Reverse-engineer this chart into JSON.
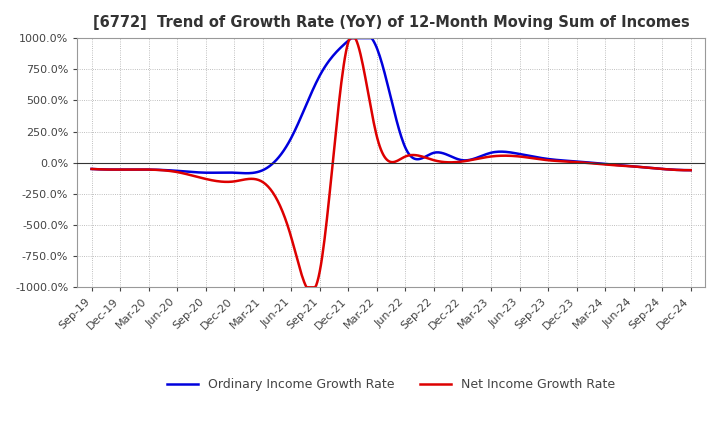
{
  "title": "[6772]  Trend of Growth Rate (YoY) of 12-Month Moving Sum of Incomes",
  "ylim": [
    -1000,
    1000
  ],
  "yticks": [
    1000.0,
    750.0,
    500.0,
    250.0,
    0.0,
    -250.0,
    -500.0,
    -750.0,
    -1000.0
  ],
  "background_color": "#ffffff",
  "plot_bg_color": "#ffffff",
  "grid_color": "#aaaaaa",
  "ordinary_color": "#0000dd",
  "net_color": "#dd0000",
  "legend_ordinary": "Ordinary Income Growth Rate",
  "legend_net": "Net Income Growth Rate",
  "x_labels": [
    "Sep-19",
    "Dec-19",
    "Mar-20",
    "Jun-20",
    "Sep-20",
    "Dec-20",
    "Mar-21",
    "Jun-21",
    "Sep-21",
    "Dec-21",
    "Mar-22",
    "Jun-22",
    "Sep-22",
    "Dec-22",
    "Mar-23",
    "Jun-23",
    "Sep-23",
    "Dec-23",
    "Mar-24",
    "Jun-24",
    "Sep-24",
    "Dec-24"
  ],
  "ordinary_values": [
    -50,
    -55,
    -55,
    -65,
    -80,
    -80,
    -60,
    200,
    700,
    980,
    920,
    120,
    80,
    20,
    80,
    70,
    30,
    10,
    -10,
    -30,
    -50,
    -60
  ],
  "net_values": [
    -50,
    -55,
    -55,
    -75,
    -130,
    -150,
    -155,
    -600,
    -870,
    970,
    210,
    50,
    20,
    10,
    50,
    50,
    20,
    5,
    -15,
    -30,
    -50,
    -60
  ]
}
